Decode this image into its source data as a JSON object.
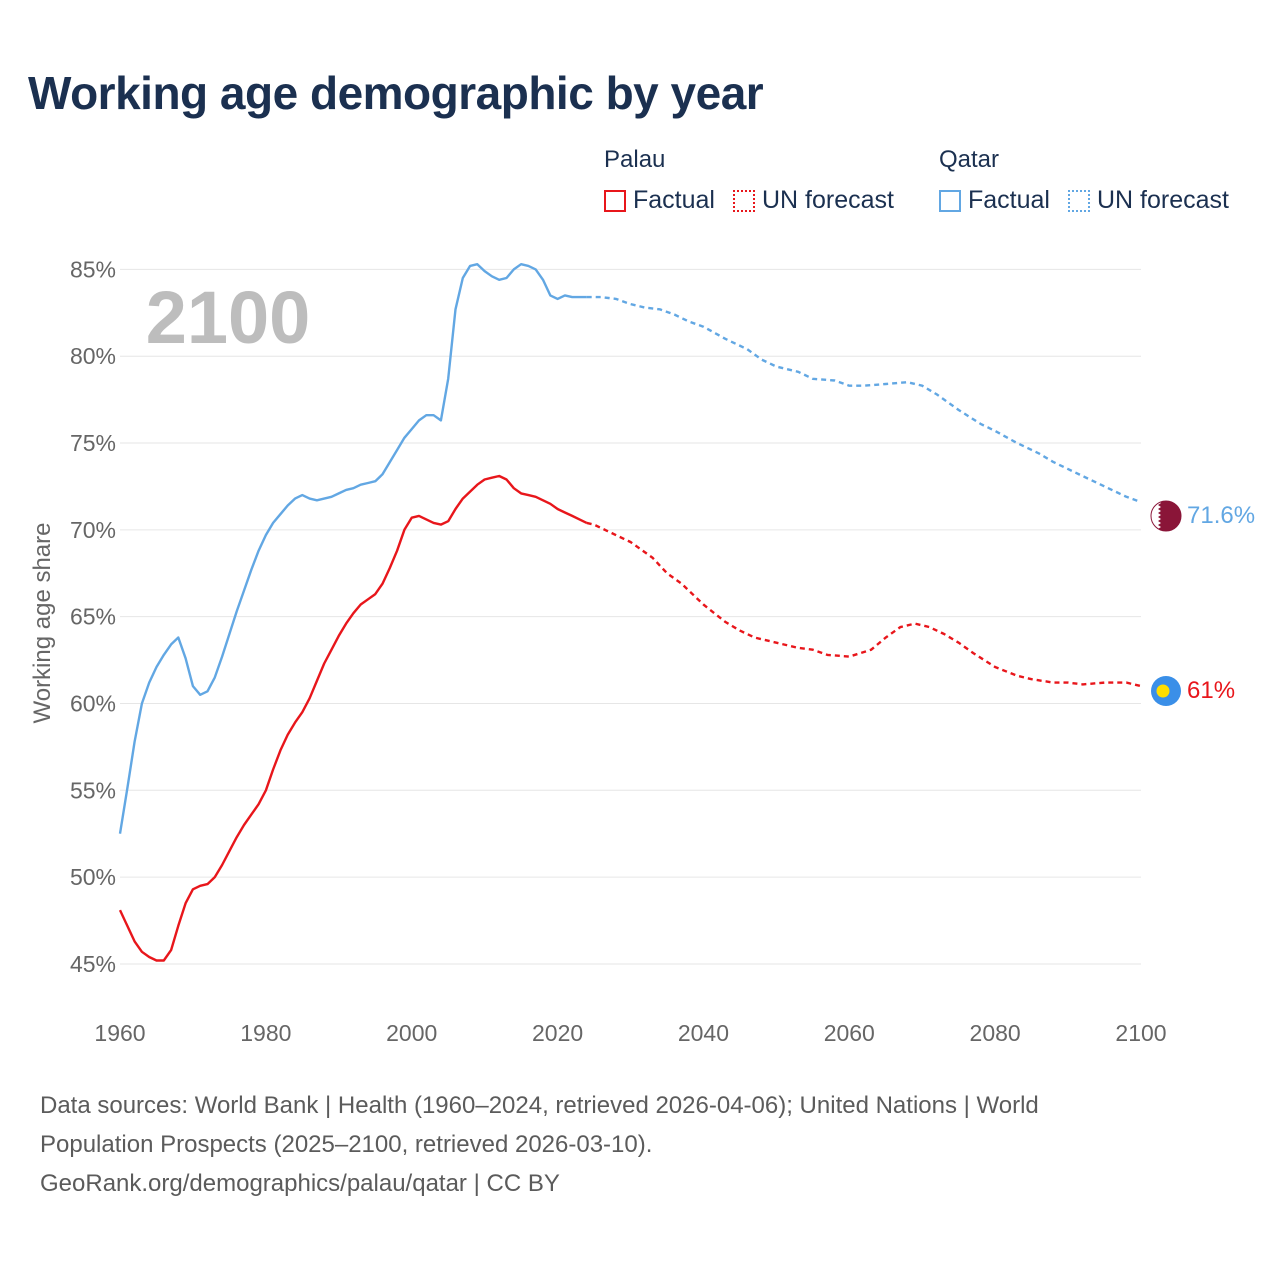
{
  "title": "Working age demographic by year",
  "legend": {
    "palau": {
      "name": "Palau",
      "factual": "Factual",
      "forecast": "UN forecast"
    },
    "qatar": {
      "name": "Qatar",
      "factual": "Factual",
      "forecast": "UN forecast"
    }
  },
  "colors": {
    "palau": "#e8161b",
    "qatar": "#62a7e3",
    "grid": "#e6e6e6",
    "axis_text": "#666666",
    "year_label": "#bdbdbd"
  },
  "year_display": "2100",
  "end_labels": {
    "palau": "61%",
    "qatar": "71.6%"
  },
  "flags": {
    "palau": "palau-flag-icon",
    "qatar": "qatar-flag-icon"
  },
  "sources": {
    "line1": "Data sources: World Bank | Health (1960–2024, retrieved 2026-04-06); United Nations | World",
    "line2": "Population Prospects (2025–2100, retrieved 2026-03-10).",
    "line3": "GeoRank.org/demographics/palau/qatar | CC BY"
  },
  "chart_data": {
    "type": "line",
    "title": "Working age demographic by year",
    "xlabel": "",
    "ylabel": "Working age share",
    "xlim": [
      1960,
      2100
    ],
    "ylim": [
      43.5,
      86
    ],
    "x_ticks": [
      1960,
      1980,
      2000,
      2020,
      2040,
      2060,
      2080,
      2100
    ],
    "y_ticks": [
      45,
      50,
      55,
      60,
      65,
      70,
      75,
      80,
      85
    ],
    "y_tick_labels": [
      "45%",
      "50%",
      "55%",
      "60%",
      "65%",
      "70%",
      "75%",
      "80%",
      "85%"
    ],
    "factual_until": 2024,
    "series": [
      {
        "name": "Palau",
        "points": [
          [
            1960,
            48.1
          ],
          [
            1961,
            47.2
          ],
          [
            1962,
            46.3
          ],
          [
            1963,
            45.7
          ],
          [
            1964,
            45.4
          ],
          [
            1965,
            45.2
          ],
          [
            1966,
            45.2
          ],
          [
            1967,
            45.8
          ],
          [
            1968,
            47.2
          ],
          [
            1969,
            48.5
          ],
          [
            1970,
            49.3
          ],
          [
            1971,
            49.5
          ],
          [
            1972,
            49.6
          ],
          [
            1973,
            50.0
          ],
          [
            1974,
            50.7
          ],
          [
            1975,
            51.5
          ],
          [
            1976,
            52.3
          ],
          [
            1977,
            53.0
          ],
          [
            1978,
            53.6
          ],
          [
            1979,
            54.2
          ],
          [
            1980,
            55.0
          ],
          [
            1981,
            56.2
          ],
          [
            1982,
            57.3
          ],
          [
            1983,
            58.2
          ],
          [
            1984,
            58.9
          ],
          [
            1985,
            59.5
          ],
          [
            1986,
            60.3
          ],
          [
            1987,
            61.3
          ],
          [
            1988,
            62.3
          ],
          [
            1989,
            63.1
          ],
          [
            1990,
            63.9
          ],
          [
            1991,
            64.6
          ],
          [
            1992,
            65.2
          ],
          [
            1993,
            65.7
          ],
          [
            1994,
            66.0
          ],
          [
            1995,
            66.3
          ],
          [
            1996,
            66.9
          ],
          [
            1997,
            67.8
          ],
          [
            1998,
            68.8
          ],
          [
            1999,
            70.0
          ],
          [
            2000,
            70.7
          ],
          [
            2001,
            70.8
          ],
          [
            2002,
            70.6
          ],
          [
            2003,
            70.4
          ],
          [
            2004,
            70.3
          ],
          [
            2005,
            70.5
          ],
          [
            2006,
            71.2
          ],
          [
            2007,
            71.8
          ],
          [
            2008,
            72.2
          ],
          [
            2009,
            72.6
          ],
          [
            2010,
            72.9
          ],
          [
            2011,
            73.0
          ],
          [
            2012,
            73.1
          ],
          [
            2013,
            72.9
          ],
          [
            2014,
            72.4
          ],
          [
            2015,
            72.1
          ],
          [
            2016,
            72.0
          ],
          [
            2017,
            71.9
          ],
          [
            2018,
            71.7
          ],
          [
            2019,
            71.5
          ],
          [
            2020,
            71.2
          ],
          [
            2021,
            71.0
          ],
          [
            2022,
            70.8
          ],
          [
            2023,
            70.6
          ],
          [
            2024,
            70.4
          ],
          [
            2025,
            70.3
          ],
          [
            2027,
            69.9
          ],
          [
            2030,
            69.3
          ],
          [
            2033,
            68.4
          ],
          [
            2035,
            67.5
          ],
          [
            2037,
            66.9
          ],
          [
            2040,
            65.7
          ],
          [
            2043,
            64.7
          ],
          [
            2045,
            64.2
          ],
          [
            2047,
            63.8
          ],
          [
            2050,
            63.5
          ],
          [
            2053,
            63.2
          ],
          [
            2055,
            63.1
          ],
          [
            2057,
            62.8
          ],
          [
            2060,
            62.7
          ],
          [
            2063,
            63.1
          ],
          [
            2065,
            63.8
          ],
          [
            2067,
            64.4
          ],
          [
            2069,
            64.6
          ],
          [
            2071,
            64.4
          ],
          [
            2073,
            64.0
          ],
          [
            2075,
            63.5
          ],
          [
            2077,
            62.9
          ],
          [
            2080,
            62.1
          ],
          [
            2083,
            61.6
          ],
          [
            2085,
            61.4
          ],
          [
            2088,
            61.2
          ],
          [
            2090,
            61.2
          ],
          [
            2092,
            61.1
          ],
          [
            2095,
            61.2
          ],
          [
            2098,
            61.2
          ],
          [
            2100,
            61.0
          ]
        ]
      },
      {
        "name": "Qatar",
        "points": [
          [
            1960,
            52.5
          ],
          [
            1961,
            55.1
          ],
          [
            1962,
            57.8
          ],
          [
            1963,
            60.0
          ],
          [
            1964,
            61.2
          ],
          [
            1965,
            62.1
          ],
          [
            1966,
            62.8
          ],
          [
            1967,
            63.4
          ],
          [
            1968,
            63.8
          ],
          [
            1969,
            62.6
          ],
          [
            1970,
            61.0
          ],
          [
            1971,
            60.5
          ],
          [
            1972,
            60.7
          ],
          [
            1973,
            61.5
          ],
          [
            1974,
            62.7
          ],
          [
            1975,
            64.0
          ],
          [
            1976,
            65.3
          ],
          [
            1977,
            66.5
          ],
          [
            1978,
            67.7
          ],
          [
            1979,
            68.8
          ],
          [
            1980,
            69.7
          ],
          [
            1981,
            70.4
          ],
          [
            1982,
            70.9
          ],
          [
            1983,
            71.4
          ],
          [
            1984,
            71.8
          ],
          [
            1985,
            72.0
          ],
          [
            1986,
            71.8
          ],
          [
            1987,
            71.7
          ],
          [
            1988,
            71.8
          ],
          [
            1989,
            71.9
          ],
          [
            1990,
            72.1
          ],
          [
            1991,
            72.3
          ],
          [
            1992,
            72.4
          ],
          [
            1993,
            72.6
          ],
          [
            1994,
            72.7
          ],
          [
            1995,
            72.8
          ],
          [
            1996,
            73.2
          ],
          [
            1997,
            73.9
          ],
          [
            1998,
            74.6
          ],
          [
            1999,
            75.3
          ],
          [
            2000,
            75.8
          ],
          [
            2001,
            76.3
          ],
          [
            2002,
            76.6
          ],
          [
            2003,
            76.6
          ],
          [
            2004,
            76.3
          ],
          [
            2005,
            78.7
          ],
          [
            2006,
            82.7
          ],
          [
            2007,
            84.5
          ],
          [
            2008,
            85.2
          ],
          [
            2009,
            85.3
          ],
          [
            2010,
            84.9
          ],
          [
            2011,
            84.6
          ],
          [
            2012,
            84.4
          ],
          [
            2013,
            84.5
          ],
          [
            2014,
            85.0
          ],
          [
            2015,
            85.3
          ],
          [
            2016,
            85.2
          ],
          [
            2017,
            85.0
          ],
          [
            2018,
            84.4
          ],
          [
            2019,
            83.5
          ],
          [
            2020,
            83.3
          ],
          [
            2021,
            83.5
          ],
          [
            2022,
            83.4
          ],
          [
            2023,
            83.4
          ],
          [
            2024,
            83.4
          ],
          [
            2026,
            83.4
          ],
          [
            2028,
            83.3
          ],
          [
            2030,
            83.0
          ],
          [
            2032,
            82.8
          ],
          [
            2034,
            82.7
          ],
          [
            2036,
            82.4
          ],
          [
            2038,
            82.0
          ],
          [
            2040,
            81.7
          ],
          [
            2043,
            81.0
          ],
          [
            2046,
            80.4
          ],
          [
            2048,
            79.8
          ],
          [
            2050,
            79.4
          ],
          [
            2053,
            79.1
          ],
          [
            2055,
            78.7
          ],
          [
            2058,
            78.6
          ],
          [
            2060,
            78.3
          ],
          [
            2062,
            78.3
          ],
          [
            2065,
            78.4
          ],
          [
            2068,
            78.5
          ],
          [
            2070,
            78.3
          ],
          [
            2072,
            77.8
          ],
          [
            2075,
            76.9
          ],
          [
            2078,
            76.1
          ],
          [
            2080,
            75.7
          ],
          [
            2083,
            75.0
          ],
          [
            2086,
            74.4
          ],
          [
            2088,
            73.9
          ],
          [
            2090,
            73.5
          ],
          [
            2093,
            72.9
          ],
          [
            2095,
            72.5
          ],
          [
            2098,
            71.9
          ],
          [
            2100,
            71.6
          ]
        ]
      }
    ]
  }
}
